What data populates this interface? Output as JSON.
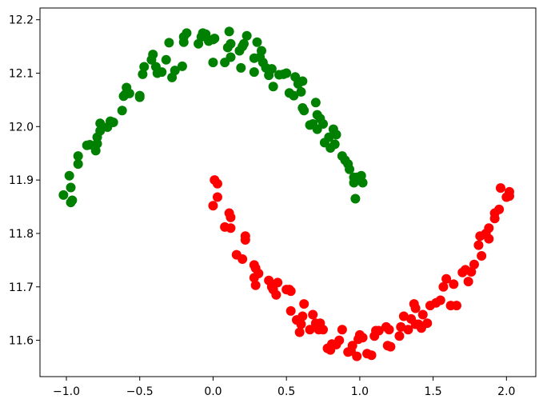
{
  "chart_data": {
    "type": "scatter",
    "title": "",
    "xlabel": "",
    "ylabel": "",
    "xlim": [
      -1.18,
      2.2
    ],
    "ylim": [
      11.532,
      12.222
    ],
    "grid": false,
    "legend": "none",
    "x_ticks": [
      -1.0,
      -0.5,
      0.0,
      0.5,
      1.0,
      1.5,
      2.0
    ],
    "x_tick_labels": [
      "−1.0",
      "−0.5",
      "0.0",
      "0.5",
      "1.0",
      "1.5",
      "2.0"
    ],
    "y_ticks": [
      11.6,
      11.7,
      11.8,
      11.9,
      12.0,
      12.1,
      12.2
    ],
    "y_tick_labels": [
      "11.6",
      "11.7",
      "11.8",
      "11.9",
      "12.0",
      "12.1",
      "12.2"
    ],
    "series": [
      {
        "color": "#008000",
        "points": [
          [
            -1.02,
            11.872
          ],
          [
            -0.98,
            11.908
          ],
          [
            -0.97,
            11.886
          ],
          [
            -0.96,
            11.862
          ],
          [
            -0.97,
            11.858
          ],
          [
            -0.92,
            11.945
          ],
          [
            -0.92,
            11.93
          ],
          [
            -0.86,
            11.965
          ],
          [
            -0.84,
            11.966
          ],
          [
            -0.8,
            11.955
          ],
          [
            -0.79,
            11.968
          ],
          [
            -0.79,
            11.98
          ],
          [
            -0.77,
            11.992
          ],
          [
            -0.77,
            12.006
          ],
          [
            -0.72,
            11.999
          ],
          [
            -0.7,
            12.01
          ],
          [
            -0.68,
            12.008
          ],
          [
            -0.62,
            12.03
          ],
          [
            -0.61,
            12.057
          ],
          [
            -0.59,
            12.073
          ],
          [
            -0.6,
            12.06
          ],
          [
            -0.57,
            12.062
          ],
          [
            -0.5,
            12.055
          ],
          [
            -0.5,
            12.058
          ],
          [
            -0.48,
            12.098
          ],
          [
            -0.47,
            12.112
          ],
          [
            -0.42,
            12.125
          ],
          [
            -0.41,
            12.135
          ],
          [
            -0.39,
            12.112
          ],
          [
            -0.38,
            12.1
          ],
          [
            -0.35,
            12.102
          ],
          [
            -0.32,
            12.125
          ],
          [
            -0.3,
            12.157
          ],
          [
            -0.28,
            12.092
          ],
          [
            -0.26,
            12.105
          ],
          [
            -0.21,
            12.113
          ],
          [
            -0.2,
            12.168
          ],
          [
            -0.2,
            12.158
          ],
          [
            -0.18,
            12.175
          ],
          [
            -0.1,
            12.155
          ],
          [
            -0.08,
            12.168
          ],
          [
            -0.07,
            12.175
          ],
          [
            -0.05,
            12.173
          ],
          [
            -0.03,
            12.16
          ],
          [
            0.0,
            12.163
          ],
          [
            0.01,
            12.165
          ],
          [
            0.0,
            12.12
          ],
          [
            0.08,
            12.12
          ],
          [
            0.1,
            12.148
          ],
          [
            0.11,
            12.178
          ],
          [
            0.12,
            12.155
          ],
          [
            0.12,
            12.13
          ],
          [
            0.18,
            12.142
          ],
          [
            0.2,
            12.15
          ],
          [
            0.21,
            12.155
          ],
          [
            0.23,
            12.17
          ],
          [
            0.19,
            12.11
          ],
          [
            0.28,
            12.128
          ],
          [
            0.28,
            12.102
          ],
          [
            0.3,
            12.158
          ],
          [
            0.32,
            12.13
          ],
          [
            0.33,
            12.142
          ],
          [
            0.34,
            12.12
          ],
          [
            0.36,
            12.11
          ],
          [
            0.38,
            12.096
          ],
          [
            0.4,
            12.108
          ],
          [
            0.41,
            12.075
          ],
          [
            0.45,
            12.097
          ],
          [
            0.48,
            12.098
          ],
          [
            0.5,
            12.1
          ],
          [
            0.52,
            12.063
          ],
          [
            0.55,
            12.058
          ],
          [
            0.56,
            12.093
          ],
          [
            0.58,
            12.08
          ],
          [
            0.6,
            12.065
          ],
          [
            0.61,
            12.035
          ],
          [
            0.62,
            12.03
          ],
          [
            0.61,
            12.085
          ],
          [
            0.66,
            12.003
          ],
          [
            0.68,
            12.005
          ],
          [
            0.7,
            12.045
          ],
          [
            0.71,
            12.022
          ],
          [
            0.71,
            11.995
          ],
          [
            0.73,
            12.015
          ],
          [
            0.75,
            12.005
          ],
          [
            0.76,
            11.97
          ],
          [
            0.79,
            11.98
          ],
          [
            0.8,
            11.96
          ],
          [
            0.82,
            11.995
          ],
          [
            0.83,
            11.967
          ],
          [
            0.84,
            11.985
          ],
          [
            0.88,
            11.945
          ],
          [
            0.9,
            11.937
          ],
          [
            0.92,
            11.93
          ],
          [
            0.93,
            11.92
          ],
          [
            0.96,
            11.895
          ],
          [
            0.97,
            11.865
          ],
          [
            0.98,
            11.905
          ],
          [
            1.0,
            11.9
          ],
          [
            1.01,
            11.908
          ],
          [
            1.02,
            11.895
          ],
          [
            0.96,
            11.905
          ]
        ]
      },
      {
        "color": "#ff0000",
        "points": [
          [
            0.0,
            11.852
          ],
          [
            0.01,
            11.9
          ],
          [
            0.03,
            11.893
          ],
          [
            0.03,
            11.868
          ],
          [
            0.08,
            11.812
          ],
          [
            0.11,
            11.838
          ],
          [
            0.12,
            11.83
          ],
          [
            0.12,
            11.81
          ],
          [
            0.16,
            11.76
          ],
          [
            0.2,
            11.752
          ],
          [
            0.22,
            11.795
          ],
          [
            0.22,
            11.788
          ],
          [
            0.28,
            11.741
          ],
          [
            0.28,
            11.717
          ],
          [
            0.29,
            11.735
          ],
          [
            0.29,
            11.703
          ],
          [
            0.31,
            11.725
          ],
          [
            0.38,
            11.712
          ],
          [
            0.4,
            11.7
          ],
          [
            0.41,
            11.695
          ],
          [
            0.43,
            11.685
          ],
          [
            0.44,
            11.708
          ],
          [
            0.5,
            11.695
          ],
          [
            0.52,
            11.695
          ],
          [
            0.53,
            11.655
          ],
          [
            0.53,
            11.692
          ],
          [
            0.57,
            11.638
          ],
          [
            0.59,
            11.615
          ],
          [
            0.6,
            11.63
          ],
          [
            0.61,
            11.645
          ],
          [
            0.62,
            11.668
          ],
          [
            0.66,
            11.62
          ],
          [
            0.68,
            11.648
          ],
          [
            0.7,
            11.632
          ],
          [
            0.72,
            11.62
          ],
          [
            0.75,
            11.62
          ],
          [
            0.73,
            11.632
          ],
          [
            0.78,
            11.585
          ],
          [
            0.8,
            11.582
          ],
          [
            0.81,
            11.593
          ],
          [
            0.84,
            11.592
          ],
          [
            0.86,
            11.6
          ],
          [
            0.88,
            11.62
          ],
          [
            0.92,
            11.578
          ],
          [
            0.94,
            11.58
          ],
          [
            0.95,
            11.59
          ],
          [
            0.98,
            11.57
          ],
          [
            0.99,
            11.602
          ],
          [
            1.0,
            11.61
          ],
          [
            1.02,
            11.605
          ],
          [
            1.05,
            11.575
          ],
          [
            1.08,
            11.572
          ],
          [
            1.1,
            11.608
          ],
          [
            1.11,
            11.618
          ],
          [
            1.13,
            11.618
          ],
          [
            1.18,
            11.625
          ],
          [
            1.19,
            11.59
          ],
          [
            1.2,
            11.62
          ],
          [
            1.21,
            11.588
          ],
          [
            1.27,
            11.608
          ],
          [
            1.28,
            11.625
          ],
          [
            1.3,
            11.645
          ],
          [
            1.33,
            11.62
          ],
          [
            1.35,
            11.64
          ],
          [
            1.37,
            11.668
          ],
          [
            1.38,
            11.66
          ],
          [
            1.38,
            11.63
          ],
          [
            1.4,
            11.63
          ],
          [
            1.42,
            11.623
          ],
          [
            1.43,
            11.648
          ],
          [
            1.46,
            11.632
          ],
          [
            1.48,
            11.665
          ],
          [
            1.52,
            11.67
          ],
          [
            1.55,
            11.675
          ],
          [
            1.57,
            11.7
          ],
          [
            1.59,
            11.715
          ],
          [
            1.62,
            11.665
          ],
          [
            1.64,
            11.705
          ],
          [
            1.66,
            11.665
          ],
          [
            1.7,
            11.727
          ],
          [
            1.72,
            11.732
          ],
          [
            1.74,
            11.71
          ],
          [
            1.76,
            11.728
          ],
          [
            1.78,
            11.742
          ],
          [
            1.81,
            11.778
          ],
          [
            1.82,
            11.795
          ],
          [
            1.83,
            11.758
          ],
          [
            1.86,
            11.8
          ],
          [
            1.88,
            11.81
          ],
          [
            1.88,
            11.79
          ],
          [
            1.92,
            11.828
          ],
          [
            1.92,
            11.838
          ],
          [
            1.95,
            11.845
          ],
          [
            1.96,
            11.885
          ],
          [
            2.0,
            11.868
          ],
          [
            2.02,
            11.878
          ],
          [
            2.02,
            11.87
          ]
        ]
      }
    ]
  }
}
